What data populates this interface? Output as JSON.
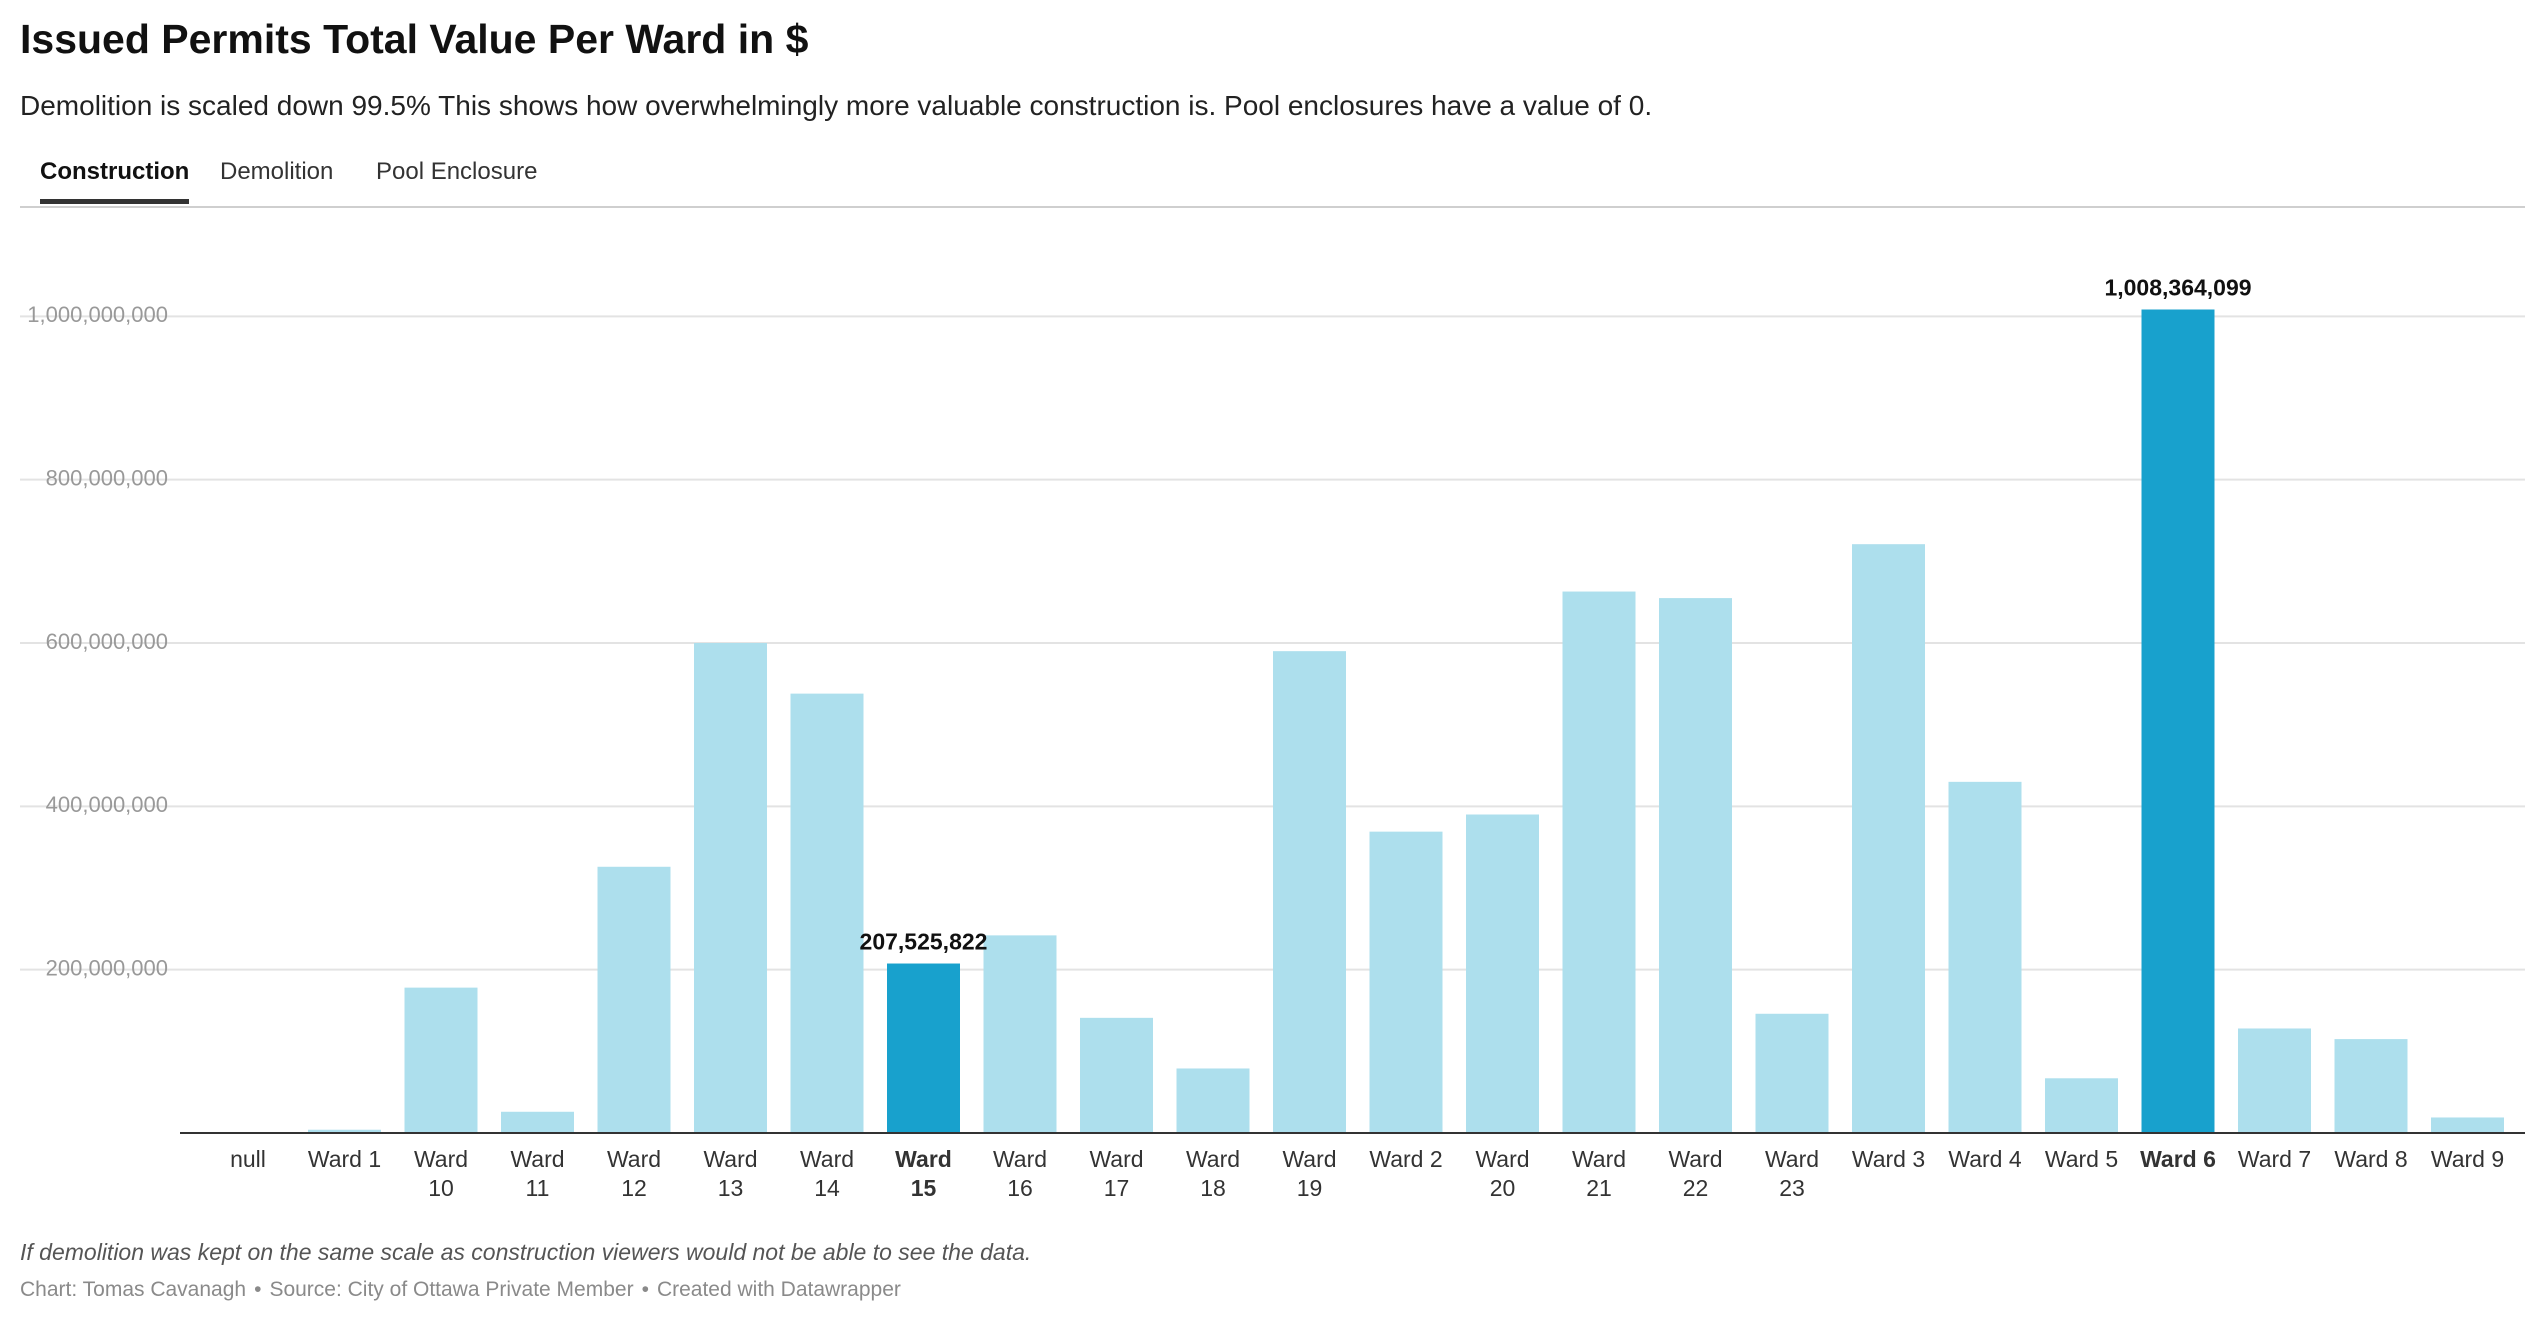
{
  "title": "Issued Permits Total Value Per Ward in $",
  "subtitle": "Demolition is scaled down 99.5% This shows how overwhelmingly more valuable construction is. Pool enclosures have a value of 0.",
  "tabs": [
    {
      "label": "Construction",
      "active": true
    },
    {
      "label": "Demolition",
      "active": false
    },
    {
      "label": "Pool Enclosure",
      "active": false
    }
  ],
  "notes": "If demolition was kept on the same scale as construction viewers would not be able to see the data.",
  "footer": {
    "chart_by": "Chart: Tomas Cavanagh",
    "source": "Source: City of Ottawa Private Member",
    "created_with": "Created with Datawrapper",
    "separator": "•"
  },
  "colors": {
    "bar": "#addfed",
    "highlight": "#18a1cd",
    "grid": "#e3e3e3",
    "axis": "#333333",
    "tick_label": "#999999"
  },
  "chart_data": {
    "type": "bar",
    "categories": [
      [
        "null"
      ],
      [
        "Ward 1"
      ],
      [
        "Ward",
        "10"
      ],
      [
        "Ward",
        "11"
      ],
      [
        "Ward",
        "12"
      ],
      [
        "Ward",
        "13"
      ],
      [
        "Ward",
        "14"
      ],
      [
        "Ward",
        "15"
      ],
      [
        "Ward",
        "16"
      ],
      [
        "Ward",
        "17"
      ],
      [
        "Ward",
        "18"
      ],
      [
        "Ward",
        "19"
      ],
      [
        "Ward 2"
      ],
      [
        "Ward",
        "20"
      ],
      [
        "Ward",
        "21"
      ],
      [
        "Ward",
        "22"
      ],
      [
        "Ward",
        "23"
      ],
      [
        "Ward 3"
      ],
      [
        "Ward 4"
      ],
      [
        "Ward 5"
      ],
      [
        "Ward 6"
      ],
      [
        "Ward 7"
      ],
      [
        "Ward 8"
      ],
      [
        "Ward 9"
      ]
    ],
    "values": [
      0,
      4000000,
      178000000,
      26000000,
      326000000,
      600000000,
      538000000,
      207525822,
      242000000,
      141000000,
      79000000,
      590000000,
      369000000,
      390000000,
      663000000,
      655000000,
      146000000,
      721000000,
      430000000,
      67000000,
      1008364099,
      128000000,
      115000000,
      19000000
    ],
    "highlighted": [
      7,
      20
    ],
    "data_labels": [
      {
        "index": 7,
        "text": "207,525,822"
      },
      {
        "index": 20,
        "text": "1,008,364,099"
      }
    ],
    "yticks": [
      {
        "value": 200000000,
        "label": "200,000,000"
      },
      {
        "value": 400000000,
        "label": "400,000,000"
      },
      {
        "value": 600000000,
        "label": "600,000,000"
      },
      {
        "value": 800000000,
        "label": "800,000,000"
      },
      {
        "value": 1000000000,
        "label": "1,000,000,000"
      }
    ],
    "ylim": [
      0,
      1080000000
    ],
    "grid": true,
    "legend": "none"
  }
}
